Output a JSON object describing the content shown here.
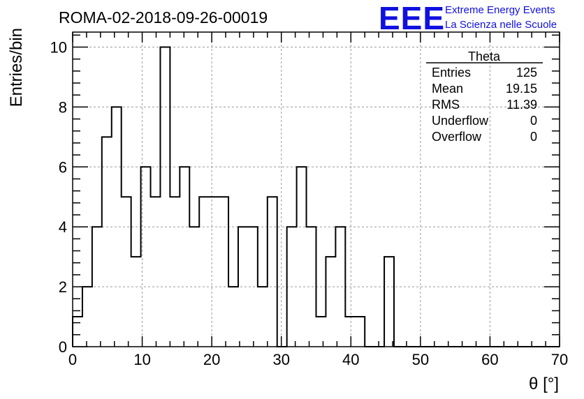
{
  "chart_data": {
    "type": "bar",
    "title": "ROMA-02-2018-09-26-00019",
    "xlabel": "θ [°]",
    "ylabel": "Entries/bin",
    "xlim": [
      0,
      70
    ],
    "ylim": [
      0,
      10.5
    ],
    "grid": true,
    "x_ticks": [
      0,
      10,
      20,
      30,
      40,
      50,
      60,
      70
    ],
    "y_ticks": [
      0,
      2,
      4,
      6,
      8,
      10
    ],
    "bin_width": 1.4,
    "bin_edges_start": 0,
    "values": [
      1,
      2,
      4,
      7,
      8,
      5,
      3,
      6,
      5,
      10,
      5,
      6,
      4,
      5,
      5,
      5,
      2,
      4,
      4,
      2,
      5,
      0,
      4,
      6,
      4,
      1,
      3,
      4,
      1,
      1,
      0,
      0,
      3,
      0,
      0,
      0,
      0,
      0,
      0,
      0,
      0,
      0,
      0,
      0,
      0,
      0,
      0,
      0,
      0,
      0
    ],
    "stats": {
      "name": "Theta",
      "rows": [
        {
          "label": "Entries",
          "value": "125"
        },
        {
          "label": "Mean",
          "value": "19.15"
        },
        {
          "label": "RMS",
          "value": "11.39"
        },
        {
          "label": "Underflow",
          "value": "0"
        },
        {
          "label": "Overflow",
          "value": "0"
        }
      ]
    },
    "logo": {
      "mark": "EEE",
      "line1": "Extreme Energy Events",
      "line2": "La Scienza nelle Scuole",
      "color": "#1010e0"
    },
    "line_color": "#000000",
    "grid_color": "#9a9a9a"
  }
}
